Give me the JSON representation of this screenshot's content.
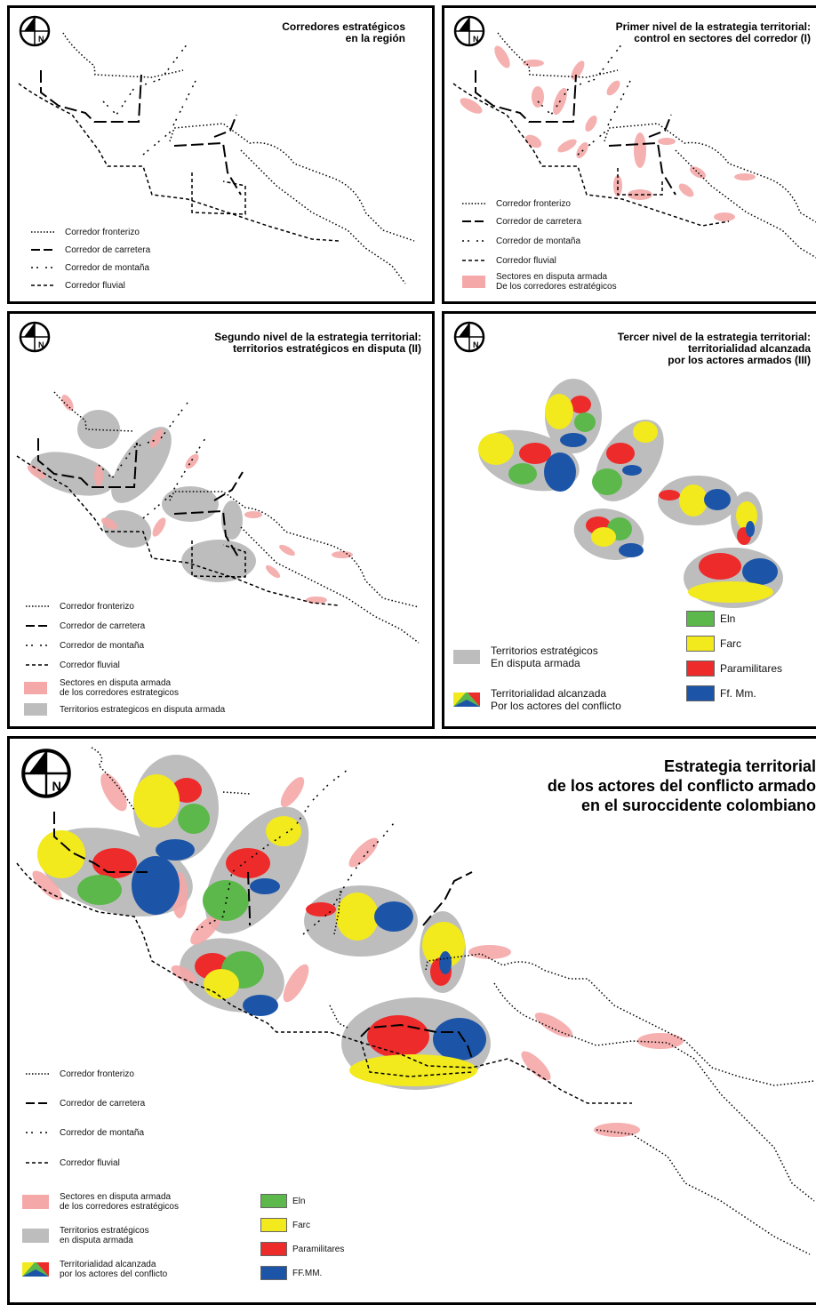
{
  "colors": {
    "eln": "#5cb84a",
    "farc": "#f2ea1c",
    "paramilitares": "#ee2b2b",
    "ffmm": "#1c55a8",
    "territory_gray": "#bdbdbd",
    "dispute_pink": "#f5a8a8"
  },
  "compass_letter": "N",
  "panel1": {
    "title": [
      "Corredores estratégicos",
      "en la región"
    ],
    "legend": [
      "Corredor fronterizo",
      "Corredor de carretera",
      "Corredor de montaña",
      "Corredor fluvial"
    ]
  },
  "panel2": {
    "title": [
      "Primer nivel de la estrategia territorial:",
      "control en sectores del corredor (I)"
    ],
    "legend": [
      "Corredor fronterizo",
      "Corredor de carretera",
      "Corredor de montaña",
      "Corredor fluvial"
    ],
    "legend_dispute": [
      "Sectores en disputa armada",
      "De los corredores estratégicos"
    ]
  },
  "panel3": {
    "title": [
      "Segundo nivel de la estrategia territorial:",
      "territorios estratégicos en disputa (II)"
    ],
    "legend": [
      "Corredor fronterizo",
      "Corredor de carretera",
      "Corredor de montaña",
      "Corredor fluvial"
    ],
    "legend_dispute": [
      "Sectores en disputa armada",
      "de los corredores estrategicos"
    ],
    "legend_territory": "Territorios estrategicos en disputa armada"
  },
  "panel4": {
    "title": [
      "Tercer nivel de la estrategia territorial:",
      "territorialidad alcanzada",
      "por los actores armados (III)"
    ],
    "legend_territory": [
      "Territorios estratégicos",
      "En disputa armada"
    ],
    "legend_territoriality": [
      "Territorialidad alcanzada",
      "Por los actores del conflicto"
    ],
    "actors": [
      "Eln",
      "Farc",
      "Paramilitares",
      "Ff. Mm."
    ]
  },
  "panel5": {
    "title": [
      "Estrategia territorial",
      "de los actores del conflicto armado",
      "en el suroccidente colombiano"
    ],
    "legend": [
      "Corredor fronterizo",
      "Corredor de carretera",
      "Corredor de montaña",
      "Corredor fluvial"
    ],
    "legend_dispute": [
      "Sectores en disputa armada",
      "de los corredores estratégicos"
    ],
    "legend_territory": [
      "Territorios estratégicos",
      "en disputa armada"
    ],
    "legend_territoriality": [
      "Territorialidad alcanzada",
      "por los actores del conflicto"
    ],
    "actors": [
      "Eln",
      "Farc",
      "Paramilitares",
      "FF.MM."
    ]
  }
}
